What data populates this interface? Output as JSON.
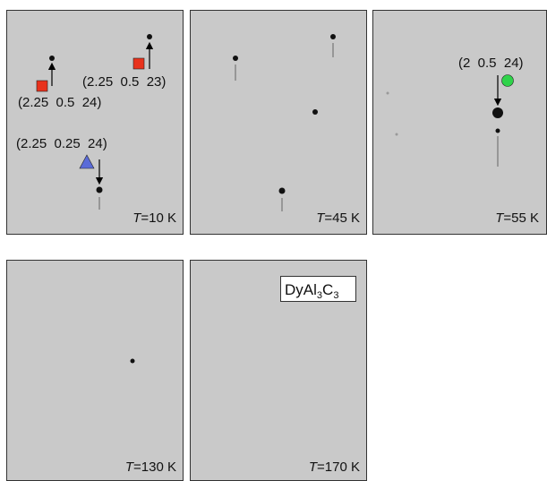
{
  "panels": [
    {
      "temperature": {
        "symbol": "T",
        "text": "=10 K"
      },
      "annotations": [
        "(2.25  0.5  24)",
        "(2.25  0.5  23)",
        "(2.25  0.25  24)"
      ]
    },
    {
      "temperature": {
        "symbol": "T",
        "text": "=45 K"
      }
    },
    {
      "temperature": {
        "symbol": "T",
        "text": "=55 K"
      },
      "annotations": [
        "(2  0.5  24)"
      ]
    },
    {
      "temperature": {
        "symbol": "T",
        "text": "=130 K"
      }
    },
    {
      "temperature": {
        "symbol": "T",
        "text": "=170 K"
      },
      "compound": {
        "parts": [
          "DyAl",
          "3",
          "C",
          "3"
        ]
      }
    }
  ]
}
